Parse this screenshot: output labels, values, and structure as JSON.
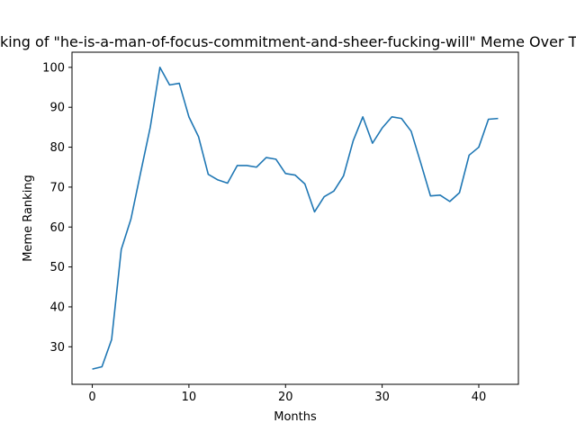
{
  "chart_data": {
    "type": "line",
    "title": "Ranking of \"he-is-a-man-of-focus-commitment-and-sheer-fucking-will\" Meme Over Time",
    "xlabel": "Months",
    "ylabel": "Meme Ranking",
    "xlim": [
      -2.1,
      44.1
    ],
    "ylim": [
      20.6,
      103.8
    ],
    "xticks": [
      0,
      10,
      20,
      30,
      40
    ],
    "yticks": [
      30,
      40,
      50,
      60,
      70,
      80,
      90,
      100
    ],
    "grid": false,
    "series": [
      {
        "color": "#1f77b4",
        "x": [
          0,
          1,
          2,
          3,
          4,
          5,
          6,
          7,
          8,
          9,
          10,
          11,
          12,
          13,
          14,
          15,
          16,
          17,
          18,
          19,
          20,
          21,
          22,
          23,
          24,
          25,
          26,
          27,
          28,
          29,
          30,
          31,
          32,
          33,
          34,
          35,
          36,
          37,
          38,
          39,
          40,
          41,
          42
        ],
        "values": [
          24.4,
          25.0,
          31.8,
          54.4,
          62.0,
          73.6,
          85.0,
          100.0,
          95.6,
          96.0,
          87.6,
          82.6,
          73.2,
          71.8,
          71.0,
          75.4,
          75.4,
          75.0,
          77.4,
          77.0,
          73.4,
          73.0,
          70.8,
          63.8,
          67.6,
          69.0,
          72.8,
          81.6,
          87.6,
          81.0,
          84.8,
          87.6,
          87.2,
          84.0,
          76.0,
          67.8,
          68.0,
          66.4,
          68.6,
          78.0,
          80.0,
          87.0,
          87.2
        ]
      }
    ]
  }
}
